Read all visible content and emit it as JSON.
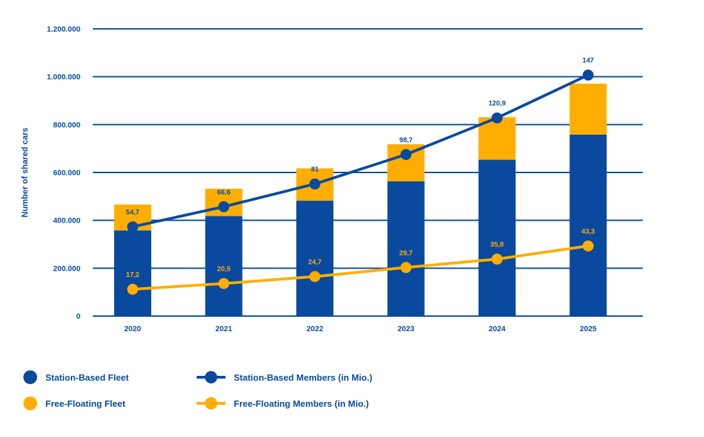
{
  "chart_data": {
    "type": "bar",
    "categories": [
      "2020",
      "2021",
      "2022",
      "2023",
      "2024",
      "2025"
    ],
    "ylabel": "Number of shared cars",
    "ylim": [
      0,
      1200000
    ],
    "y_ticks": [
      "0",
      "200.000",
      "400.000",
      "600.000",
      "800.000",
      "1.000.000",
      "1.200.000"
    ],
    "grid": true,
    "legend_position": "bottom-left",
    "stacked_series": [
      {
        "name": "Station-Based Fleet",
        "color": "#0a4a9e",
        "values": [
          358000,
          418000,
          482000,
          563000,
          653000,
          758000
        ]
      },
      {
        "name": "Free-Floating Fleet",
        "color": "#ffae00",
        "values": [
          108000,
          114000,
          135000,
          155000,
          178000,
          213000
        ]
      }
    ],
    "line_series": [
      {
        "name": "Station-Based Members (in Mio.)",
        "color": "#0a4a9e",
        "labels": [
          "54,7",
          "66,6",
          "81",
          "98,7",
          "120,9",
          "147"
        ],
        "positions": [
          373000,
          457000,
          552000,
          675000,
          828000,
          1007000
        ]
      },
      {
        "name": "Free-Floating Members (in Mio.)",
        "color": "#ffae00",
        "labels": [
          "17,2",
          "20,5",
          "24,7",
          "29,7",
          "35,8",
          "43,3"
        ],
        "positions": [
          112000,
          136000,
          165000,
          203000,
          238000,
          293000
        ]
      }
    ]
  }
}
